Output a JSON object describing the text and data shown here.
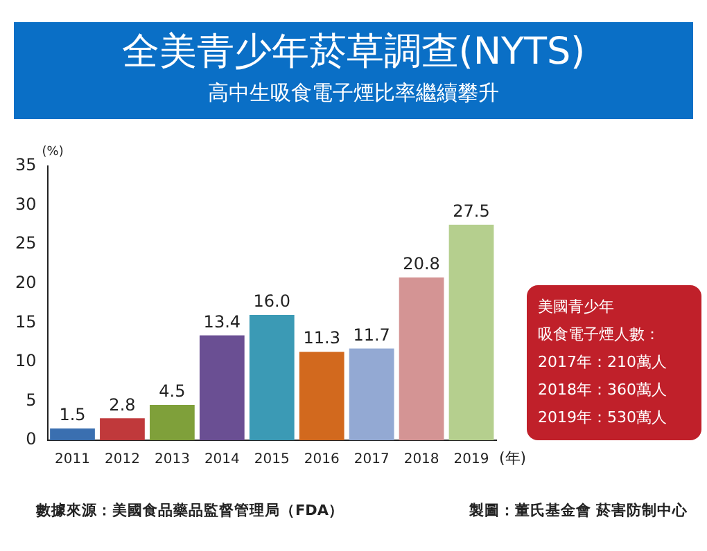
{
  "chart_data": {
    "type": "bar",
    "title": "全美青少年菸草調查(NYTS)",
    "subtitle": "高中生吸食電子煙比率繼續攀升",
    "ylabel": "(%)",
    "xlabel": "(年)",
    "categories": [
      "2011",
      "2012",
      "2013",
      "2014",
      "2015",
      "2016",
      "2017",
      "2018",
      "2019"
    ],
    "values": [
      1.5,
      2.8,
      4.5,
      13.4,
      16.0,
      11.3,
      11.7,
      20.8,
      27.5
    ],
    "colors": [
      "#3a6fb0",
      "#c0393b",
      "#7fa03a",
      "#6a4f93",
      "#3b9ab5",
      "#d2691e",
      "#93a9d3",
      "#d49494",
      "#b5cf8e"
    ],
    "value_labels": [
      "1.5",
      "2.8",
      "4.5",
      "13.4",
      "16.0",
      "11.3",
      "11.7",
      "20.8",
      "27.5"
    ],
    "ylim": [
      0,
      35
    ],
    "yticks": [
      0,
      5,
      10,
      15,
      20,
      25,
      30,
      35
    ],
    "grid": false,
    "legend": false,
    "annotations": [
      "美國青少年",
      "吸食電子煙人數：",
      "2017年：210萬人",
      "2018年：360萬人",
      "2019年：530萬人",
      "數據來源：美國食品藥品監督管理局（FDA）",
      "製圖：董氏基金會 菸害防制中心"
    ]
  }
}
